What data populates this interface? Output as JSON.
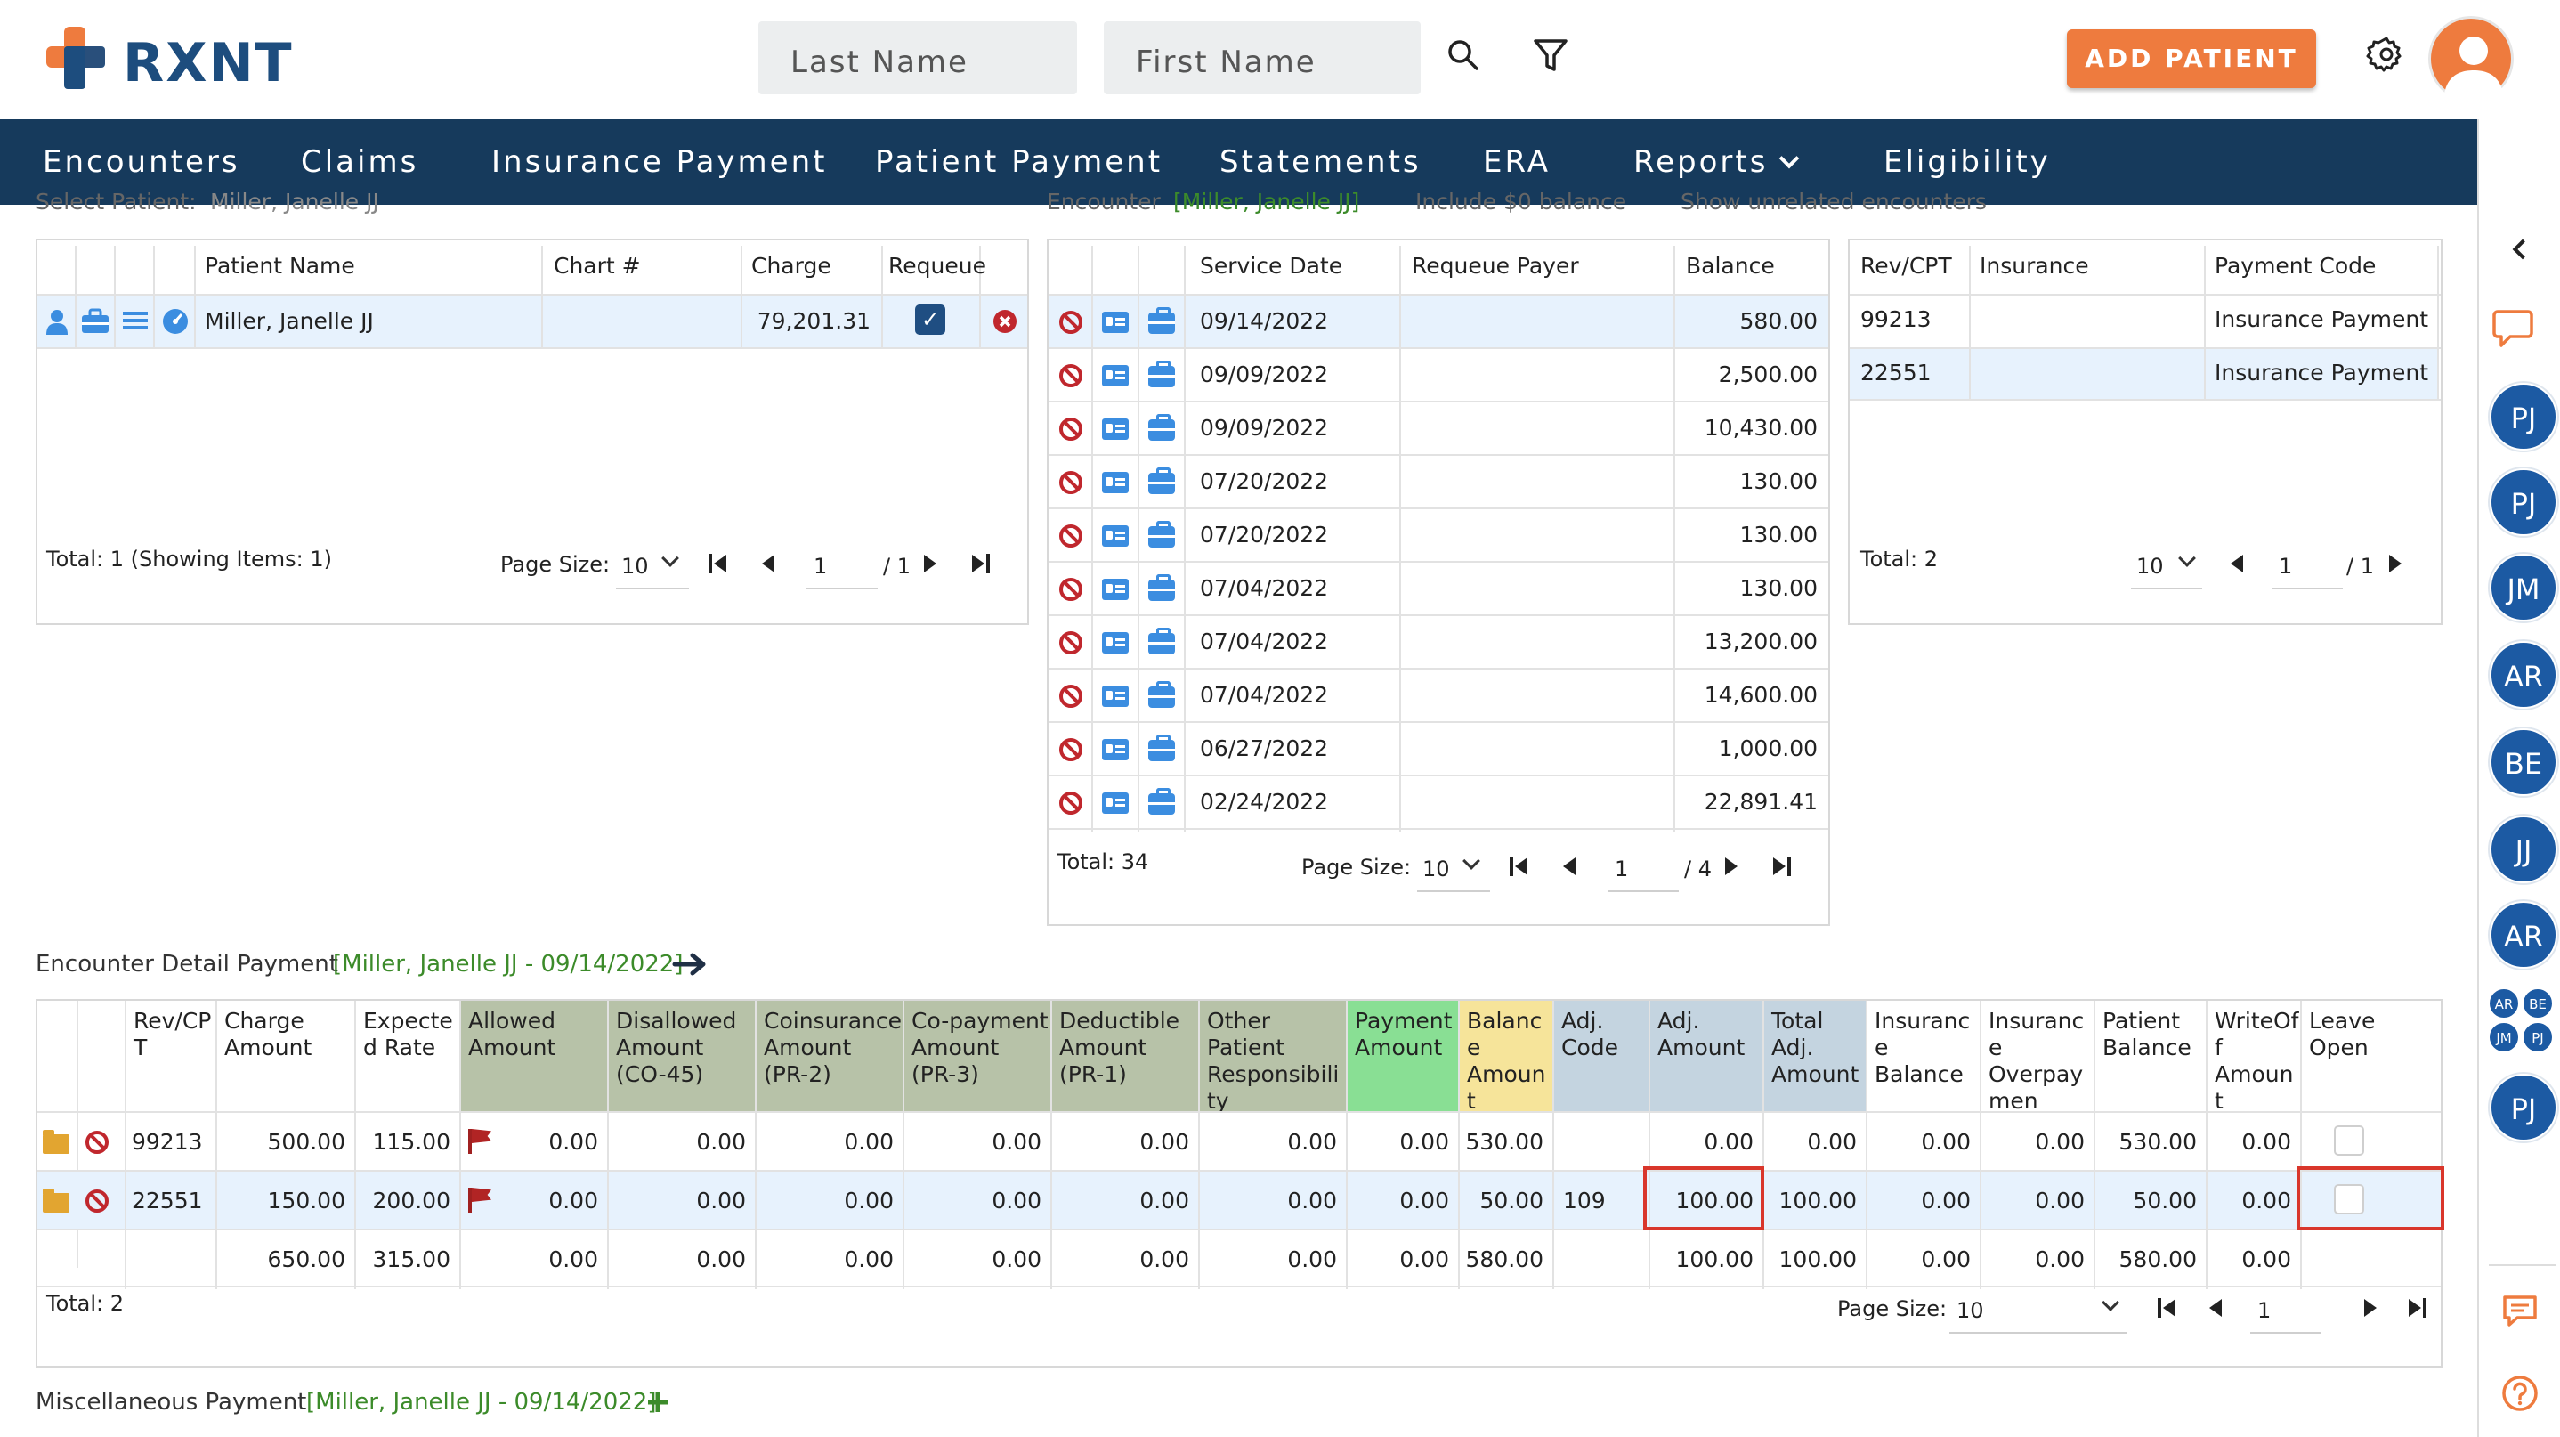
{
  "brand": {
    "name": "RXNT"
  },
  "header": {
    "last_name_placeholder": "Last Name",
    "first_name_placeholder": "First Name",
    "add_patient_label": "ADD PATIENT"
  },
  "nav": [
    "Encounters",
    "Claims",
    "Insurance Payment",
    "Patient Payment",
    "Statements",
    "ERA",
    "Reports",
    "Eligibility"
  ],
  "top_fragment": {
    "select_patient_label": "Select Patient:",
    "select_patient_value": "Miller, Janelle JJ",
    "encounter_label": "Encounter",
    "encounter_value": "[Miller, Janelle JJ]",
    "include_zero_label": "Include $0 balance",
    "show_unrelated_label": "Show unrelated encounters"
  },
  "patients": {
    "headers": [
      "Patient Name",
      "Chart #",
      "Charge",
      "Requeue"
    ],
    "rows": [
      {
        "name": "Miller, Janelle JJ",
        "chart": "",
        "charge": "79,201.31"
      }
    ],
    "total": "Total: 1  (Showing Items: 1)",
    "page_size_label": "Page Size:",
    "page_size": "10",
    "page": "1",
    "of": "/ 1"
  },
  "encounters": {
    "headers": [
      "Service Date",
      "Requeue Payer",
      "Balance"
    ],
    "rows": [
      {
        "date": "09/14/2022",
        "payer": "",
        "balance": "580.00"
      },
      {
        "date": "09/09/2022",
        "payer": "",
        "balance": "2,500.00"
      },
      {
        "date": "09/09/2022",
        "payer": "",
        "balance": "10,430.00"
      },
      {
        "date": "07/20/2022",
        "payer": "",
        "balance": "130.00"
      },
      {
        "date": "07/20/2022",
        "payer": "",
        "balance": "130.00"
      },
      {
        "date": "07/04/2022",
        "payer": "",
        "balance": "130.00"
      },
      {
        "date": "07/04/2022",
        "payer": "",
        "balance": "13,200.00"
      },
      {
        "date": "07/04/2022",
        "payer": "",
        "balance": "14,600.00"
      },
      {
        "date": "06/27/2022",
        "payer": "",
        "balance": "1,000.00"
      },
      {
        "date": "02/24/2022",
        "payer": "",
        "balance": "22,891.41"
      }
    ],
    "total": "Total: 34",
    "page_size_label": "Page Size:",
    "page_size": "10",
    "page": "1",
    "of": "/ 4"
  },
  "codes": {
    "headers": [
      "Rev/CPT",
      "Insurance",
      "Payment Code"
    ],
    "rows": [
      {
        "cpt": "99213",
        "insurance": "",
        "code": "Insurance Payment"
      },
      {
        "cpt": "22551",
        "insurance": "",
        "code": "Insurance Payment"
      }
    ],
    "total": "Total: 2",
    "page_size": "10",
    "page": "1",
    "of": "/ 1"
  },
  "detail": {
    "title": "Encounter Detail Payment",
    "context": "[Miller, Janelle JJ - 09/14/2022]",
    "headers": [
      "Rev/CPT",
      "Charge Amount",
      "Expected Rate",
      "Allowed Amount",
      "Disallowed Amount (CO-45)",
      "Coinsurance Amount (PR-2)",
      "Co-payment Amount (PR-3)",
      "Deductible Amount (PR-1)",
      "Other Patient Responsibility",
      "Payment Amount",
      "Balance Amount",
      "Adj. Code",
      "Adj. Amount",
      "Total Adj. Amount",
      "Insurance Balance",
      "Insurance Overpaymen",
      "Patient Balance",
      "WriteOff Amount",
      "Leave Open"
    ],
    "rows": [
      [
        "99213",
        "500.00",
        "115.00",
        "0.00",
        "0.00",
        "0.00",
        "0.00",
        "0.00",
        "0.00",
        "0.00",
        "530.00",
        "",
        "0.00",
        "0.00",
        "0.00",
        "0.00",
        "530.00",
        "0.00"
      ],
      [
        "22551",
        "150.00",
        "200.00",
        "0.00",
        "0.00",
        "0.00",
        "0.00",
        "0.00",
        "0.00",
        "0.00",
        "50.00",
        "109",
        "100.00",
        "100.00",
        "0.00",
        "0.00",
        "50.00",
        "0.00"
      ]
    ],
    "totals": [
      "",
      "650.00",
      "315.00",
      "0.00",
      "0.00",
      "0.00",
      "0.00",
      "0.00",
      "0.00",
      "0.00",
      "580.00",
      "",
      "100.00",
      "100.00",
      "0.00",
      "0.00",
      "580.00",
      "0.00"
    ],
    "total": "Total: 2",
    "page_size_label": "Page Size:",
    "page_size": "10",
    "page": "1"
  },
  "misc": {
    "title": "Miscellaneous Payment",
    "context": "[Miller, Janelle JJ - 09/14/2022]"
  },
  "sidebar": {
    "avatars": [
      "PJ",
      "PJ",
      "JM",
      "AR",
      "BE",
      "JJ",
      "AR"
    ],
    "small_avatars": [
      "AR",
      "BE",
      "JM",
      "PJ"
    ],
    "last_avatar": "PJ"
  },
  "colors": {
    "nav_bg": "#163a5c",
    "accent": "#ee7b3e",
    "allowed_header": "#b7c2a8",
    "payment_header": "#89df94",
    "balance_header": "#f6e49a",
    "adj_header": "#c4d4e0"
  }
}
